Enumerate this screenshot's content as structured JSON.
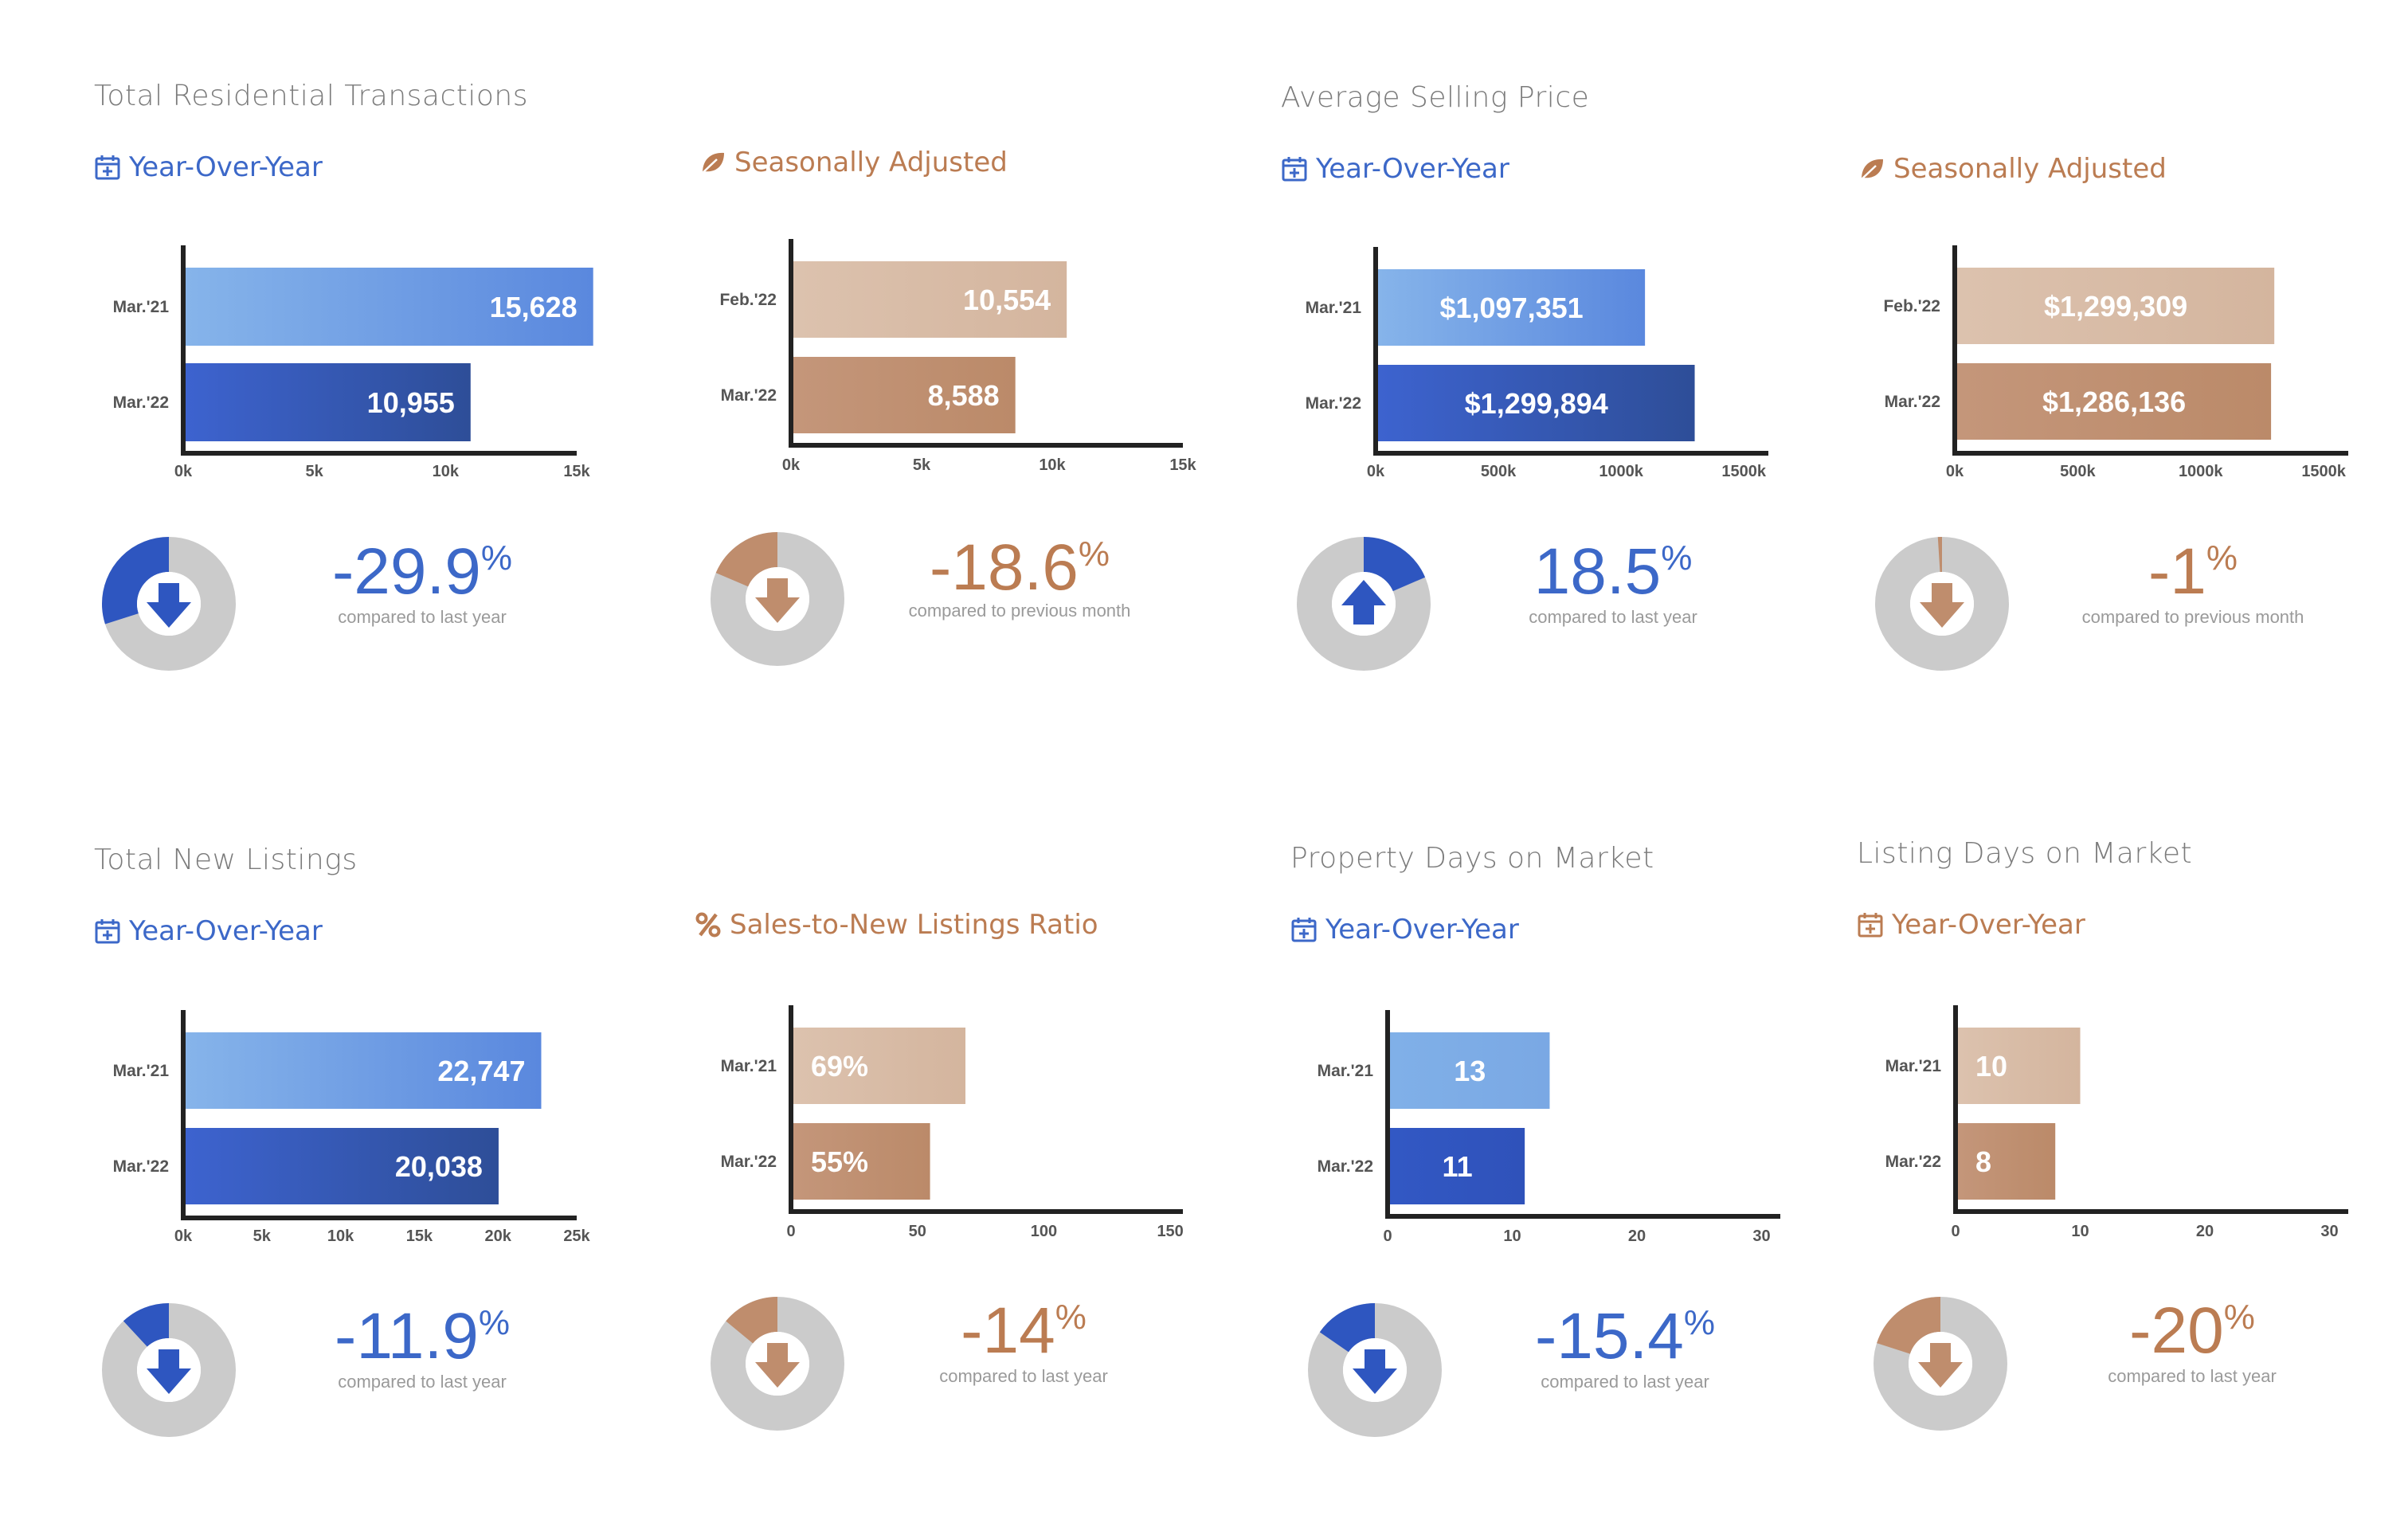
{
  "colors": {
    "blue_light": "#86b2e8",
    "blue_mid": "#5b8bdf",
    "blue_dark": "#2f4f9c",
    "blue_solid": "#2e56c0",
    "blue_text": "#3c68c8",
    "brown_light": "#d8bca7",
    "brown_dark": "#bf8d6d",
    "brown_text": "#bb7c52",
    "donut_gray": "#cbcbcb",
    "axis": "#222222"
  },
  "panels": [
    {
      "title": "Total Residential Transactions",
      "subtitle": "Year-Over-Year",
      "subtitle_icon": "calendar-icon",
      "theme": "blue",
      "chart_data": {
        "type": "bar",
        "orientation": "horizontal",
        "categories": [
          "Mar.'21",
          "Mar.'22"
        ],
        "values": [
          15628,
          10955
        ],
        "data_labels": [
          "15,628",
          "10,955"
        ],
        "label_position": "right",
        "xlim": [
          0,
          15000
        ],
        "xticks": [
          0,
          5000,
          10000,
          15000
        ],
        "xtick_labels": [
          "0k",
          "5k",
          "10k",
          "15k"
        ]
      },
      "change": {
        "value": "-29.9",
        "unit": "%",
        "caption": "compared to last year",
        "direction": "down",
        "fraction": 0.299
      }
    },
    {
      "title": "",
      "subtitle": "Seasonally Adjusted",
      "subtitle_icon": "leaf-icon",
      "theme": "brown",
      "chart_data": {
        "type": "bar",
        "orientation": "horizontal",
        "categories": [
          "Feb.'22",
          "Mar.'22"
        ],
        "values": [
          10554,
          8588
        ],
        "data_labels": [
          "10,554",
          "8,588"
        ],
        "label_position": "right",
        "xlim": [
          0,
          15000
        ],
        "xticks": [
          0,
          5000,
          10000,
          15000
        ],
        "xtick_labels": [
          "0k",
          "5k",
          "10k",
          "15k"
        ]
      },
      "change": {
        "value": "-18.6",
        "unit": "%",
        "caption": "compared to previous month",
        "direction": "down",
        "fraction": 0.186
      }
    },
    {
      "title": "Average Selling Price",
      "subtitle": "Year-Over-Year",
      "subtitle_icon": "calendar-icon",
      "theme": "blue",
      "chart_data": {
        "type": "bar",
        "orientation": "horizontal",
        "categories": [
          "Mar.'21",
          "Mar.'22"
        ],
        "values": [
          1097351,
          1299894
        ],
        "data_labels": [
          "$1,097,351",
          "$1,299,894"
        ],
        "label_position": "center",
        "xlim": [
          0,
          1600000
        ],
        "xticks": [
          0,
          500000,
          1000000,
          1500000
        ],
        "xtick_labels": [
          "0k",
          "500k",
          "1000k",
          "1500k"
        ]
      },
      "change": {
        "value": "18.5",
        "unit": "%",
        "caption": "compared to last year",
        "direction": "up",
        "fraction": 0.185
      }
    },
    {
      "title": "",
      "subtitle": "Seasonally Adjusted",
      "subtitle_icon": "leaf-icon",
      "theme": "brown",
      "chart_data": {
        "type": "bar",
        "orientation": "horizontal",
        "categories": [
          "Feb.'22",
          "Mar.'22"
        ],
        "values": [
          1299309,
          1286136
        ],
        "data_labels": [
          "$1,299,309",
          "$1,286,136"
        ],
        "label_position": "center",
        "xlim": [
          0,
          1600000
        ],
        "xticks": [
          0,
          500000,
          1000000,
          1500000
        ],
        "xtick_labels": [
          "0k",
          "500k",
          "1000k",
          "1500k"
        ]
      },
      "change": {
        "value": "-1",
        "unit": "%",
        "caption": "compared to previous month",
        "direction": "down",
        "fraction": 0.01
      }
    },
    {
      "title": "Total New Listings",
      "subtitle": "Year-Over-Year",
      "subtitle_icon": "calendar-icon",
      "theme": "blue",
      "chart_data": {
        "type": "bar",
        "orientation": "horizontal",
        "categories": [
          "Mar.'21",
          "Mar.'22"
        ],
        "values": [
          22747,
          20038
        ],
        "data_labels": [
          "22,747",
          "20,038"
        ],
        "label_position": "right",
        "xlim": [
          0,
          25000
        ],
        "xticks": [
          0,
          5000,
          10000,
          15000,
          20000,
          25000
        ],
        "xtick_labels": [
          "0k",
          "5k",
          "10k",
          "15k",
          "20k",
          "25k"
        ]
      },
      "change": {
        "value": "-11.9",
        "unit": "%",
        "caption": "compared to last year",
        "direction": "down",
        "fraction": 0.119
      }
    },
    {
      "title": "",
      "subtitle": "Sales-to-New Listings Ratio",
      "subtitle_icon": "percent-icon",
      "theme": "brown",
      "chart_data": {
        "type": "bar",
        "orientation": "horizontal",
        "categories": [
          "Mar.'21",
          "Mar.'22"
        ],
        "values": [
          69,
          55
        ],
        "data_labels": [
          "69%",
          "55%"
        ],
        "label_position": "left",
        "xlim": [
          0,
          155
        ],
        "xticks": [
          0,
          50,
          100,
          150
        ],
        "xtick_labels": [
          "0",
          "50",
          "100",
          "150"
        ]
      },
      "change": {
        "value": "-14",
        "unit": "%",
        "caption": "compared to last year",
        "direction": "down",
        "fraction": 0.14
      }
    },
    {
      "title": "Property Days on Market",
      "subtitle": "Year-Over-Year",
      "subtitle_icon": "calendar-icon",
      "theme": "blue_solid",
      "chart_data": {
        "type": "bar",
        "orientation": "horizontal",
        "categories": [
          "Mar.'21",
          "Mar.'22"
        ],
        "values": [
          13,
          11
        ],
        "data_labels": [
          "13",
          "11"
        ],
        "label_position": "center",
        "xlim": [
          0,
          31.5
        ],
        "xticks": [
          0,
          10,
          20,
          30
        ],
        "xtick_labels": [
          "0",
          "10",
          "20",
          "30"
        ]
      },
      "change": {
        "value": "-15.4",
        "unit": "%",
        "caption": "compared to last year",
        "direction": "down",
        "fraction": 0.154
      }
    },
    {
      "title": "Listing Days on Market",
      "subtitle": "Year-Over-Year",
      "subtitle_icon": "calendar-icon",
      "theme": "brown",
      "chart_data": {
        "type": "bar",
        "orientation": "horizontal",
        "categories": [
          "Mar.'21",
          "Mar.'22"
        ],
        "values": [
          10,
          8
        ],
        "data_labels": [
          "10",
          "8"
        ],
        "label_position": "left",
        "xlim": [
          0,
          31.5
        ],
        "xticks": [
          0,
          10,
          20,
          30
        ],
        "xtick_labels": [
          "0",
          "10",
          "20",
          "30"
        ]
      },
      "change": {
        "value": "-20",
        "unit": "%",
        "caption": "compared to last year",
        "direction": "down",
        "fraction": 0.2
      }
    }
  ]
}
